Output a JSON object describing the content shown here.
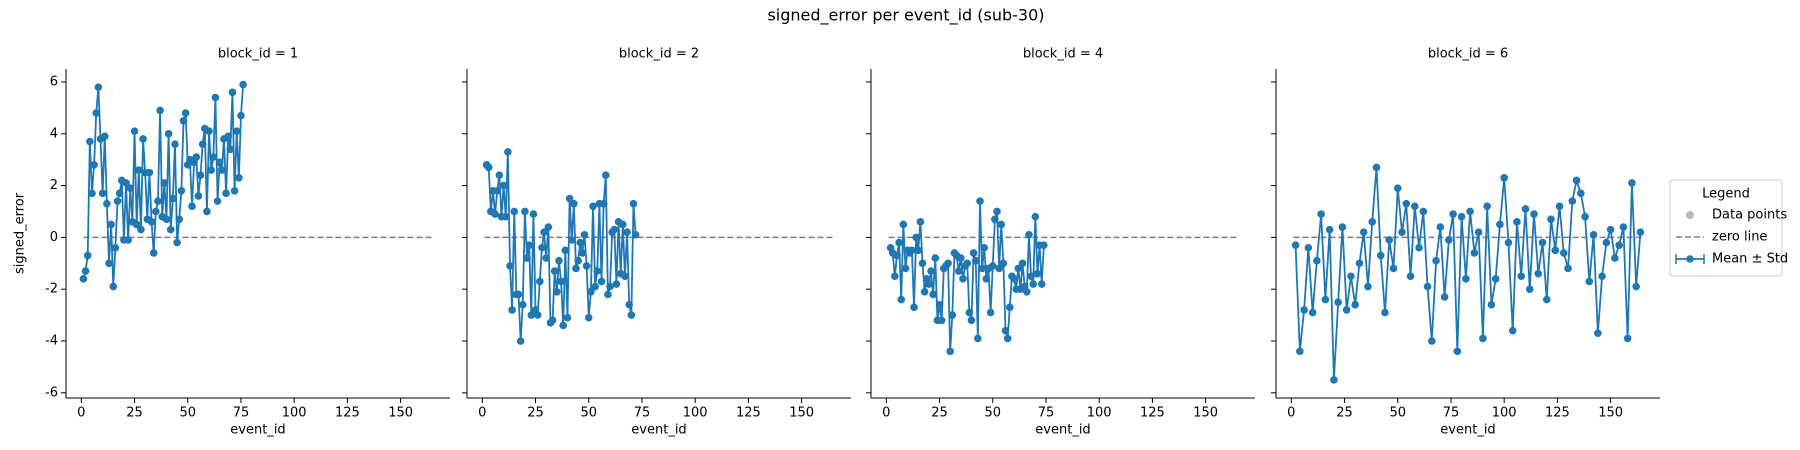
{
  "title": "signed_error per event_id (sub-30)",
  "legend": {
    "title": "Legend",
    "entries": [
      {
        "name": "Data points",
        "color": "#bbbbbb"
      },
      {
        "name": "zero line",
        "color": "#7f7f7f",
        "y": 0,
        "x": [
          1,
          165
        ]
      },
      {
        "name": "Mean ± Std",
        "color": "#1f77b4"
      }
    ]
  },
  "chart_data": [
    {
      "type": "line",
      "title": "block_id = 1",
      "x_label": "event_id",
      "y_label": "signed_error",
      "show_ytick_labels": true,
      "xlim": [
        -7.2,
        173.2
      ],
      "ylim": [
        -6.2,
        6.5
      ],
      "xticks": [
        0,
        25,
        50,
        75,
        100,
        125,
        150
      ],
      "yticks": [
        -6,
        -4,
        -2,
        0,
        2,
        4,
        6
      ],
      "series": [
        {
          "name": "Mean ± Std",
          "color": "#1f77b4",
          "x": [
            1,
            2,
            3,
            4,
            5,
            6,
            7,
            8,
            9,
            10,
            11,
            12,
            13,
            14,
            15,
            16,
            17,
            18,
            19,
            20,
            21,
            22,
            23,
            24,
            25,
            26,
            27,
            28,
            29,
            30,
            31,
            32,
            33,
            34,
            35,
            36,
            37,
            38,
            39,
            40,
            41,
            42,
            43,
            44,
            45,
            46,
            47,
            48,
            49,
            50,
            51,
            52,
            53,
            54,
            55,
            56,
            57,
            58,
            59,
            60,
            61,
            62,
            63,
            64,
            65,
            66,
            67,
            68,
            69,
            70,
            71,
            72,
            73,
            74,
            75,
            76
          ],
          "values": [
            -1.6,
            -1.3,
            -0.7,
            3.7,
            1.7,
            2.8,
            4.8,
            5.8,
            3.8,
            1.7,
            3.9,
            1.3,
            -1.0,
            0.5,
            -1.9,
            -0.4,
            1.4,
            1.7,
            2.2,
            -0.1,
            2.1,
            -0.1,
            1.9,
            0.6,
            4.1,
            0.5,
            2.6,
            0.3,
            3.8,
            2.5,
            0.7,
            2.5,
            0.6,
            -0.6,
            1.0,
            1.4,
            4.9,
            0.8,
            2.1,
            0.7,
            4.0,
            0.3,
            1.5,
            3.6,
            -0.2,
            0.7,
            1.8,
            4.5,
            4.8,
            2.8,
            3.0,
            1.2,
            2.9,
            3.1,
            1.6,
            2.4,
            3.6,
            4.2,
            1.0,
            4.1,
            2.6,
            3.1,
            5.4,
            1.4,
            2.9,
            2.6,
            3.8,
            1.7,
            3.9,
            3.4,
            5.6,
            1.8,
            4.1,
            2.3,
            4.7,
            5.9
          ]
        }
      ]
    },
    {
      "type": "line",
      "title": "block_id = 2",
      "x_label": "event_id",
      "show_ytick_labels": false,
      "xlim": [
        -7.2,
        173.2
      ],
      "ylim": [
        -6.2,
        6.5
      ],
      "xticks": [
        0,
        25,
        50,
        75,
        100,
        125,
        150
      ],
      "yticks": [
        -6,
        -4,
        -2,
        0,
        2,
        4,
        6
      ],
      "series": [
        {
          "name": "Mean ± Std",
          "color": "#1f77b4",
          "x": [
            2,
            3,
            4,
            5,
            6,
            7,
            8,
            9,
            10,
            11,
            12,
            13,
            14,
            15,
            16,
            17,
            18,
            19,
            20,
            21,
            22,
            23,
            24,
            25,
            26,
            27,
            28,
            29,
            30,
            31,
            32,
            33,
            34,
            35,
            36,
            37,
            38,
            39,
            40,
            41,
            42,
            43,
            44,
            45,
            46,
            47,
            48,
            49,
            50,
            51,
            52,
            53,
            54,
            55,
            56,
            57,
            58,
            59,
            60,
            61,
            62,
            63,
            64,
            65,
            66,
            67,
            68,
            69,
            70,
            71,
            72
          ],
          "values": [
            2.8,
            2.7,
            1.0,
            1.8,
            0.9,
            1.8,
            2.4,
            0.8,
            2.0,
            0.8,
            3.3,
            -1.1,
            -2.8,
            1.0,
            -2.2,
            -2.2,
            -4.0,
            -2.6,
            1.0,
            -0.8,
            -0.3,
            -3.0,
            0.9,
            -2.8,
            -3.0,
            -1.7,
            -0.4,
            0.2,
            -0.8,
            0.4,
            -3.3,
            -3.2,
            -1.3,
            -2.1,
            -0.9,
            -1.7,
            -3.4,
            -0.5,
            -3.1,
            1.5,
            -0.1,
            1.3,
            -1.2,
            -0.9,
            -0.2,
            -0.6,
            0.1,
            -1.1,
            -3.1,
            -2.1,
            1.2,
            -1.9,
            -1.3,
            1.3,
            -1.7,
            1.3,
            2.4,
            -2.2,
            -1.9,
            0.2,
            0.3,
            -1.8,
            0.6,
            -1.4,
            0.5,
            -1.5,
            0.2,
            -2.6,
            -3.0,
            1.3,
            0.1
          ]
        }
      ]
    },
    {
      "type": "line",
      "title": "block_id = 4",
      "x_label": "event_id",
      "show_ytick_labels": false,
      "xlim": [
        -7.2,
        173.2
      ],
      "ylim": [
        -6.2,
        6.5
      ],
      "xticks": [
        0,
        25,
        50,
        75,
        100,
        125,
        150
      ],
      "yticks": [
        -6,
        -4,
        -2,
        0,
        2,
        4,
        6
      ],
      "series": [
        {
          "name": "Mean ± Std",
          "color": "#1f77b4",
          "x": [
            2,
            3,
            4,
            5,
            6,
            7,
            8,
            9,
            10,
            11,
            12,
            13,
            14,
            15,
            16,
            17,
            18,
            19,
            20,
            21,
            22,
            23,
            24,
            25,
            26,
            27,
            28,
            29,
            30,
            31,
            32,
            33,
            34,
            35,
            36,
            37,
            38,
            39,
            40,
            41,
            42,
            43,
            44,
            45,
            46,
            47,
            48,
            49,
            50,
            51,
            52,
            53,
            54,
            55,
            56,
            57,
            58,
            59,
            60,
            61,
            62,
            63,
            64,
            65,
            66,
            67,
            68,
            69,
            70,
            71,
            72,
            73,
            74
          ],
          "values": [
            -0.4,
            -0.6,
            -1.5,
            -0.7,
            -0.2,
            -2.4,
            0.5,
            -1.2,
            -0.5,
            -0.6,
            -0.5,
            -2.7,
            0.0,
            -0.5,
            0.6,
            -1.0,
            -2.1,
            -1.6,
            -1.8,
            -1.3,
            -2.2,
            -0.8,
            -3.2,
            -2.6,
            -3.2,
            -1.2,
            -1.1,
            -1.0,
            -4.4,
            -3.0,
            -0.6,
            -0.7,
            -1.3,
            -0.8,
            -1.6,
            -1.1,
            -1.0,
            -2.9,
            -3.2,
            -0.6,
            -0.9,
            -3.9,
            1.4,
            -1.2,
            -0.4,
            -1.6,
            -1.2,
            -2.9,
            -1.1,
            0.7,
            1.0,
            -1.2,
            0.5,
            -1.0,
            -3.6,
            -3.9,
            -2.7,
            -1.5,
            -1.6,
            -2.0,
            -1.2,
            -2.0,
            -1.0,
            -1.9,
            -2.1,
            0.1,
            -1.5,
            -1.8,
            0.8,
            -1.4,
            -0.3,
            -1.8,
            -0.3
          ]
        }
      ]
    },
    {
      "type": "line",
      "title": "block_id = 6",
      "x_label": "event_id",
      "show_ytick_labels": false,
      "xlim": [
        -7.2,
        173.2
      ],
      "ylim": [
        -6.2,
        6.5
      ],
      "xticks": [
        0,
        25,
        50,
        75,
        100,
        125,
        150
      ],
      "yticks": [
        -6,
        -4,
        -2,
        0,
        2,
        4,
        6
      ],
      "series": [
        {
          "name": "Mean ± Std",
          "color": "#1f77b4",
          "x": [
            2,
            4,
            6,
            8,
            10,
            12,
            14,
            16,
            18,
            20,
            22,
            24,
            26,
            28,
            30,
            32,
            34,
            36,
            38,
            40,
            42,
            44,
            46,
            48,
            50,
            52,
            54,
            56,
            58,
            60,
            62,
            64,
            66,
            68,
            70,
            72,
            74,
            76,
            78,
            80,
            82,
            84,
            86,
            88,
            90,
            92,
            94,
            96,
            98,
            100,
            102,
            104,
            106,
            108,
            110,
            112,
            114,
            116,
            118,
            120,
            122,
            124,
            126,
            128,
            130,
            132,
            134,
            136,
            138,
            140,
            142,
            144,
            146,
            148,
            150,
            152,
            154,
            156,
            158,
            160,
            162,
            164
          ],
          "values": [
            -0.3,
            -4.4,
            -2.8,
            -0.4,
            -2.9,
            -0.9,
            0.9,
            -2.4,
            0.3,
            -5.5,
            -2.5,
            0.4,
            -2.8,
            -1.5,
            -2.6,
            -1.0,
            0.2,
            -1.9,
            0.6,
            2.7,
            -0.7,
            -2.9,
            -0.1,
            -1.2,
            1.9,
            0.2,
            1.3,
            -1.5,
            1.2,
            -0.4,
            1.0,
            -1.9,
            -4.0,
            -0.9,
            0.4,
            -2.3,
            -0.1,
            0.9,
            -4.4,
            0.8,
            -1.6,
            1.0,
            -0.6,
            0.2,
            -3.9,
            1.2,
            -2.6,
            -1.6,
            0.5,
            2.3,
            -0.2,
            -3.6,
            0.6,
            -1.5,
            1.1,
            -2.0,
            0.9,
            -1.4,
            -0.2,
            -2.4,
            0.7,
            -0.5,
            1.2,
            -0.6,
            -1.2,
            1.4,
            2.2,
            1.7,
            0.8,
            -1.7,
            0.1,
            -3.7,
            -1.5,
            -0.2,
            0.3,
            -0.8,
            -0.3,
            0.4,
            -3.9,
            2.1,
            -1.9,
            0.2
          ]
        }
      ]
    }
  ]
}
